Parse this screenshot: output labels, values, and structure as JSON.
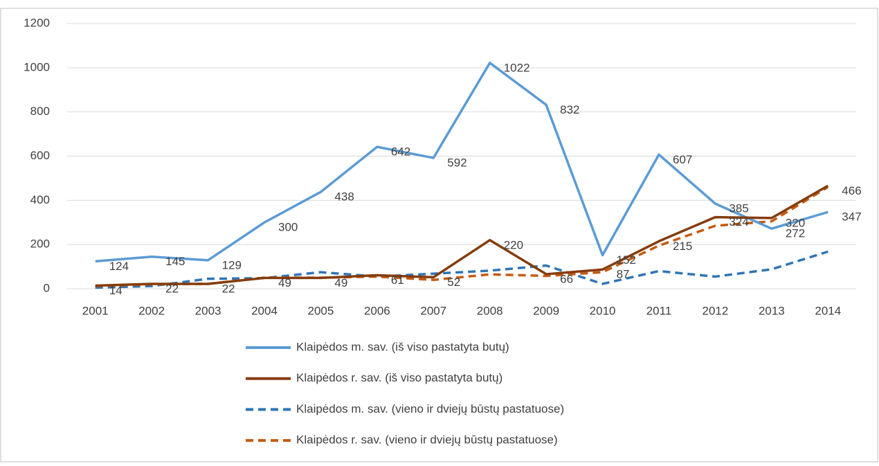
{
  "chart_data": {
    "type": "line",
    "categories": [
      "2001",
      "2002",
      "2003",
      "2004",
      "2005",
      "2006",
      "2007",
      "2008",
      "2009",
      "2010",
      "2011",
      "2012",
      "2013",
      "2014"
    ],
    "series": [
      {
        "name": "Klaipėdos m. sav. (iš viso pastatyta butų)",
        "color": "#5b9bd5",
        "dashed": false,
        "labels": true,
        "values": [
          124,
          145,
          129,
          300,
          438,
          642,
          592,
          1022,
          832,
          152,
          607,
          385,
          272,
          347
        ]
      },
      {
        "name": "Klaipėdos r. sav. (iš viso pastatyta butų)",
        "color": "#843c0c",
        "dashed": false,
        "labels": true,
        "values": [
          14,
          22,
          22,
          49,
          49,
          61,
          52,
          220,
          66,
          87,
          215,
          324,
          320,
          466
        ]
      },
      {
        "name": "Klaipėdos m. sav. (vieno ir dviejų būstų pastatuose)",
        "color": "#2e75b6",
        "dashed": true,
        "labels": false,
        "values": [
          5,
          12,
          45,
          48,
          75,
          55,
          68,
          82,
          105,
          22,
          80,
          55,
          88,
          168
        ]
      },
      {
        "name": "Klaipėdos r. sav. (vieno ir dviejų būstų pastatuose)",
        "color": "#c55a11",
        "dashed": true,
        "labels": false,
        "values": [
          12,
          20,
          22,
          50,
          50,
          55,
          40,
          65,
          58,
          75,
          195,
          285,
          305,
          460
        ]
      }
    ],
    "ylim": [
      0,
      1200
    ],
    "yticks": [
      0,
      200,
      400,
      600,
      800,
      1000,
      1200
    ],
    "grid": true,
    "legend": "bottom"
  }
}
